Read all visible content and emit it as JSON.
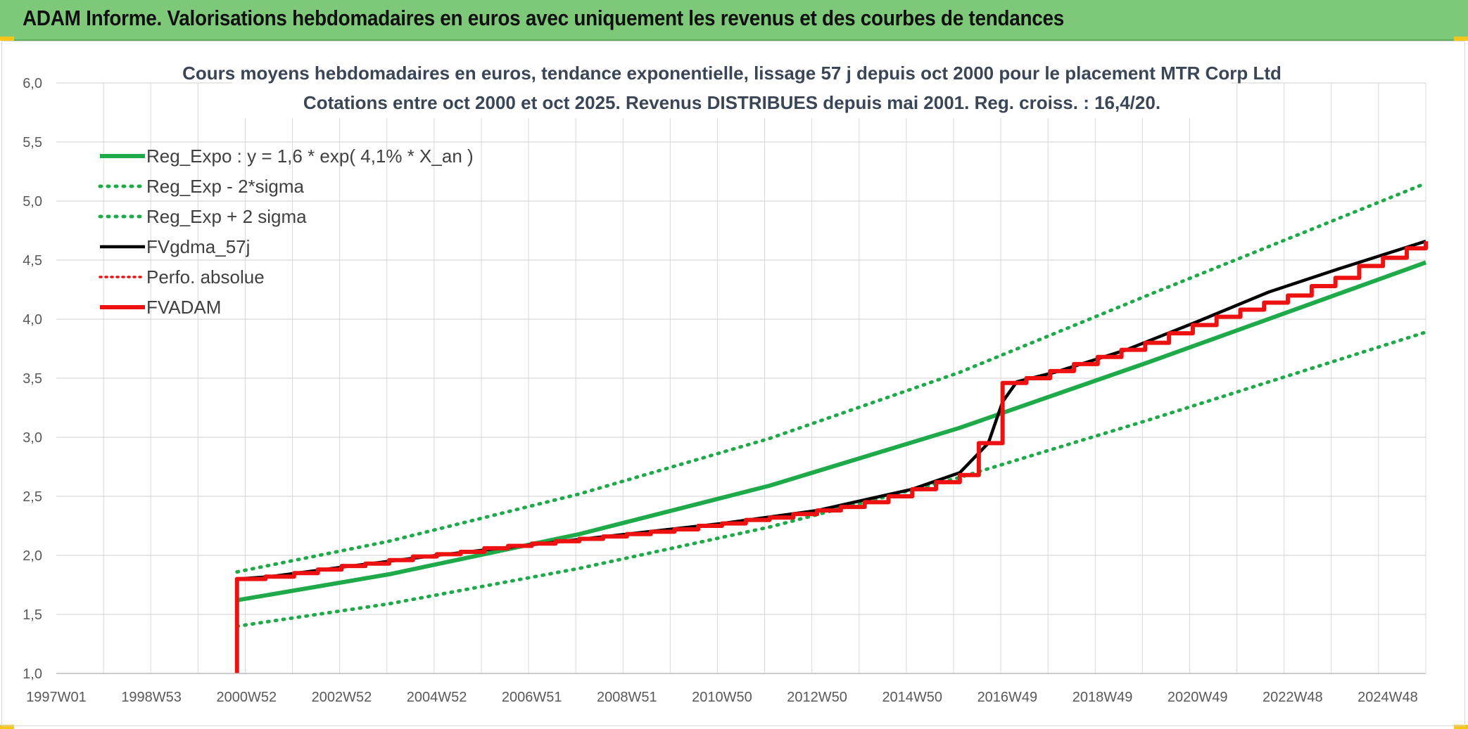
{
  "banner": {
    "title": "ADAM Informe. Valorisations hebdomadaires en euros avec uniquement les revenus et des courbes de tendances"
  },
  "colors": {
    "banner": "#7ec87a",
    "green": "#1faa4a",
    "black": "#000000",
    "red": "#ee1111",
    "grid": "#d9d9d9"
  },
  "chart_data": {
    "type": "line",
    "title_line1": "Cours moyens hebdomadaires en euros, tendance exponentielle, lissage 57 j depuis oct 2000 pour le placement MTR Corp Ltd",
    "title_line2": "Cotations entre oct 2000 et oct 2025. Revenus DISTRIBUES depuis mai 2001. Reg. croiss. : 16,4/20.",
    "x_tick_labels": [
      "1997W01",
      "1998W53",
      "2000W52",
      "2002W52",
      "2004W52",
      "2006W51",
      "2008W51",
      "2010W50",
      "2012W50",
      "2014W50",
      "2016W49",
      "2018W49",
      "2020W49",
      "2022W48",
      "2024W48"
    ],
    "x_range_years": [
      1997.0,
      2025.8
    ],
    "ylim": [
      1.0,
      6.0
    ],
    "y_ticks": [
      "1,0",
      "1,5",
      "2,0",
      "2,5",
      "3,0",
      "3,5",
      "4,0",
      "4,5",
      "5,0",
      "5,5",
      "6,0"
    ],
    "grid": true,
    "legend_position": "top-left",
    "series": [
      {
        "name": "Reg_Expo : y = 1,6 * exp( 4,1% *  X_an )",
        "style": "solid-green",
        "x": [
          2000.8,
          2004.0,
          2008.0,
          2012.0,
          2016.0,
          2020.0,
          2025.8
        ],
        "y": [
          1.62,
          1.84,
          2.18,
          2.59,
          3.08,
          3.64,
          4.48
        ]
      },
      {
        "name": "Reg_Exp - 2*sigma",
        "style": "dotted-green",
        "x": [
          2000.8,
          2004.0,
          2008.0,
          2012.0,
          2016.0,
          2020.0,
          2025.8
        ],
        "y": [
          1.4,
          1.59,
          1.89,
          2.24,
          2.66,
          3.15,
          3.89
        ]
      },
      {
        "name": "Reg_Exp + 2 sigma",
        "style": "dotted-green",
        "x": [
          2000.8,
          2004.0,
          2008.0,
          2012.0,
          2016.0,
          2020.0,
          2025.8
        ],
        "y": [
          1.86,
          2.12,
          2.52,
          2.99,
          3.55,
          4.21,
          5.15
        ]
      },
      {
        "name": "FVgdma_57j",
        "style": "solid-black",
        "x": [
          2000.8,
          2001.5,
          2003.0,
          2005.0,
          2007.0,
          2009.0,
          2011.0,
          2013.0,
          2015.0,
          2016.0,
          2016.6,
          2016.9,
          2017.2,
          2018.0,
          2019.5,
          2021.0,
          2022.5,
          2024.0,
          2025.8
        ],
        "y": [
          1.8,
          1.82,
          1.9,
          2.0,
          2.09,
          2.18,
          2.27,
          2.38,
          2.56,
          2.7,
          2.95,
          3.3,
          3.47,
          3.55,
          3.74,
          3.98,
          4.23,
          4.43,
          4.66
        ]
      },
      {
        "name": "Perfo. absolue",
        "style": "dotted-red",
        "x": [],
        "y": []
      },
      {
        "name": "FVADAM",
        "style": "solid-red",
        "x": [
          2000.8,
          2000.8,
          2001.4,
          2002.0,
          2002.5,
          2003.0,
          2003.5,
          2004.0,
          2004.5,
          2005.0,
          2005.5,
          2006.0,
          2006.5,
          2007.0,
          2007.5,
          2008.0,
          2008.5,
          2009.0,
          2009.5,
          2010.0,
          2010.5,
          2011.0,
          2011.5,
          2012.0,
          2012.5,
          2013.0,
          2013.5,
          2014.0,
          2014.5,
          2015.0,
          2015.5,
          2016.0,
          2016.4,
          2016.9,
          2017.4,
          2017.9,
          2018.4,
          2018.9,
          2019.4,
          2019.9,
          2020.4,
          2020.9,
          2021.4,
          2021.9,
          2022.4,
          2022.9,
          2023.4,
          2023.9,
          2024.4,
          2024.9,
          2025.4,
          2025.8
        ],
        "y": [
          1.0,
          1.8,
          1.82,
          1.85,
          1.88,
          1.91,
          1.93,
          1.96,
          1.99,
          2.01,
          2.03,
          2.06,
          2.08,
          2.1,
          2.12,
          2.14,
          2.16,
          2.18,
          2.2,
          2.22,
          2.25,
          2.27,
          2.3,
          2.32,
          2.35,
          2.38,
          2.41,
          2.45,
          2.5,
          2.56,
          2.62,
          2.68,
          2.95,
          3.46,
          3.5,
          3.56,
          3.62,
          3.68,
          3.74,
          3.8,
          3.88,
          3.95,
          4.02,
          4.08,
          4.14,
          4.2,
          4.28,
          4.35,
          4.45,
          4.52,
          4.6,
          4.66
        ]
      }
    ]
  }
}
